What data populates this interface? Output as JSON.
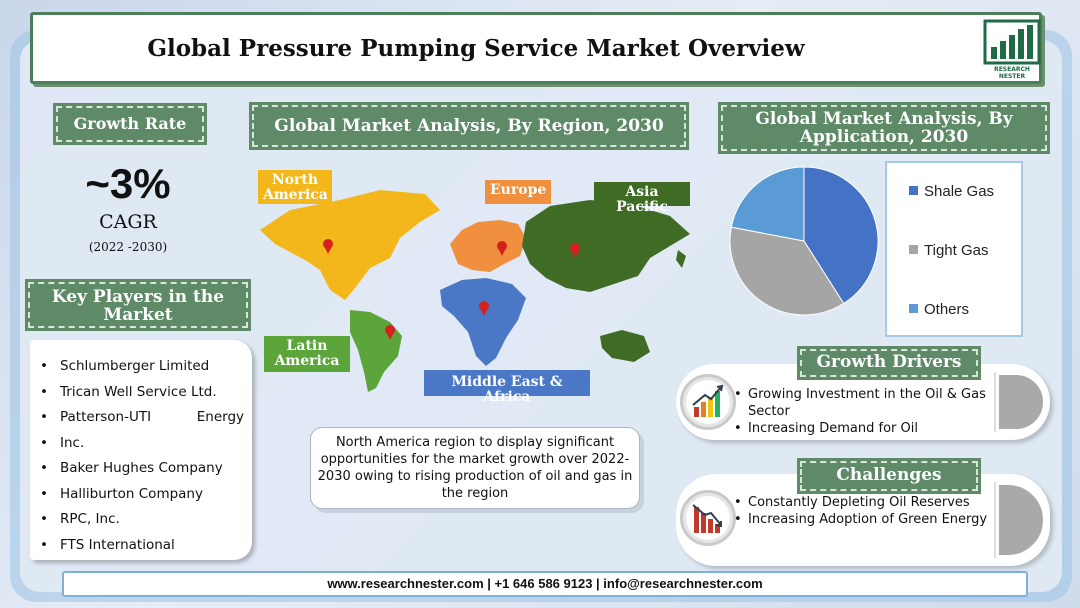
{
  "title": "Global Pressure Pumping Service Market Overview",
  "logo": {
    "line1": "RESEARCH",
    "line2": "NESTER"
  },
  "growth": {
    "label": "Growth Rate",
    "value": "~3%",
    "unit": "CAGR",
    "period": "(2022 -2030)"
  },
  "key_players": {
    "label": "Key Players in the Market",
    "items": [
      "Schlumberger Limited",
      "Trican Well Service Ltd.",
      "Patterson-UTI",
      "Energy",
      "Inc.",
      "Baker Hughes Company",
      "Halliburton Company",
      "RPC, Inc.",
      "FTS International"
    ]
  },
  "region": {
    "label": "Global Market Analysis, By Region, 2030",
    "tags": {
      "north_america": "North America",
      "europe": "Europe",
      "asia_pacific": "Asia Pacific",
      "latin_america": "Latin America",
      "mea": "Middle East & Africa"
    },
    "colors": {
      "north_america": "#f3b71b",
      "europe": "#f08f3d",
      "asia_pacific": "#3f6b24",
      "latin_america": "#5ba53b",
      "mea": "#4a78c6"
    },
    "note": "North America region to display significant opportunities for the market growth over 2022-2030 owing to rising production of oil and gas in the region"
  },
  "application": {
    "label": "Global Market Analysis, By Application, 2030",
    "legend": [
      "Shale Gas",
      "Tight Gas",
      "Others"
    ],
    "colors": [
      "#4472c4",
      "#a5a5a5",
      "#5b9bd5"
    ]
  },
  "chart_data": {
    "type": "pie",
    "categories": [
      "Shale Gas",
      "Tight Gas",
      "Others"
    ],
    "values": [
      41,
      37,
      22
    ]
  },
  "drivers": {
    "label": "Growth Drivers",
    "items": [
      "Growing Investment in the Oil & Gas Sector",
      "Increasing Demand for Oil"
    ],
    "icon": "bar-chart-growth-icon"
  },
  "challenges": {
    "label": "Challenges",
    "items": [
      "Constantly Depleting Oil Reserves",
      "Increasing Adoption of Green Energy"
    ],
    "icon": "bar-chart-decline-icon"
  },
  "footer": "www.researchnester.com | +1 646 586 9123 | info@researchnester.com"
}
